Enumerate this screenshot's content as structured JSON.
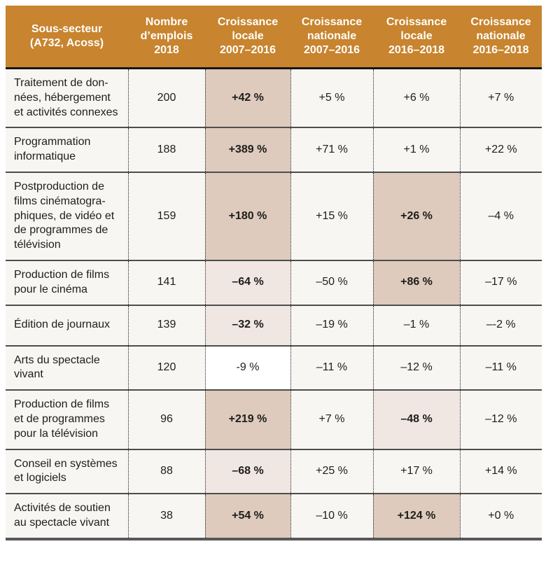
{
  "colors": {
    "header_bg": "#C8842E",
    "row_bg": "#F7F6F3",
    "hl_pos": "#DECBBD",
    "hl_neg": "#F0E7E2"
  },
  "table": {
    "columns": [
      {
        "label": "Sous-secteur\n(A732, Acoss)"
      },
      {
        "label": "Nombre\nd’emplois\n2018"
      },
      {
        "label": "Croissance\nlocale\n2007–2016"
      },
      {
        "label": "Croissance\nnationale\n2007–2016"
      },
      {
        "label": "Croissance\nlocale\n2016–2018"
      },
      {
        "label": "Croissance\nnationale\n2016–2018"
      }
    ],
    "rows": [
      {
        "sector": "Traitement de don-\nnées, hébergement\net activités connexes",
        "jobs": "200",
        "cells": [
          "+42 %",
          "+5 %",
          "+6 %",
          "+7 %"
        ]
      },
      {
        "sector": "Programmation\ninformatique",
        "jobs": "188",
        "cells": [
          "+389 %",
          "+71 %",
          "+1 %",
          "+22 %"
        ]
      },
      {
        "sector": "Postproduction de\nfilms cinématogra-\nphiques, de vidéo et\nde programmes de\ntélévision",
        "jobs": "159",
        "cells": [
          "+180 %",
          "+15 %",
          "+26 %",
          "–4 %"
        ]
      },
      {
        "sector": "Production de films\npour le cinéma",
        "jobs": "141",
        "cells": [
          "–64 %",
          "–50 %",
          "+86 %",
          "–17 %"
        ]
      },
      {
        "sector": "Édition de journaux",
        "jobs": "139",
        "cells": [
          "–32 %",
          "–19 %",
          "–1 %",
          "–-2 %"
        ]
      },
      {
        "sector": "Arts du spectacle\nvivant",
        "jobs": "120",
        "cells": [
          "-9 %",
          "–11 %",
          "–12 %",
          "–11 %"
        ]
      },
      {
        "sector": "Production de films\net de programmes\npour la télévision",
        "jobs": "96",
        "cells": [
          "+219 %",
          "+7 %",
          "–48 %",
          "–12 %"
        ]
      },
      {
        "sector": "Conseil en systèmes\net logiciels",
        "jobs": "88",
        "cells": [
          "–68 %",
          "+25 %",
          "+17 %",
          "+14 %"
        ]
      },
      {
        "sector": "Activités de soutien\nau spectacle vivant",
        "jobs": "38",
        "cells": [
          "+54 %",
          "–10 %",
          "+124 %",
          "+0 %"
        ]
      }
    ]
  }
}
